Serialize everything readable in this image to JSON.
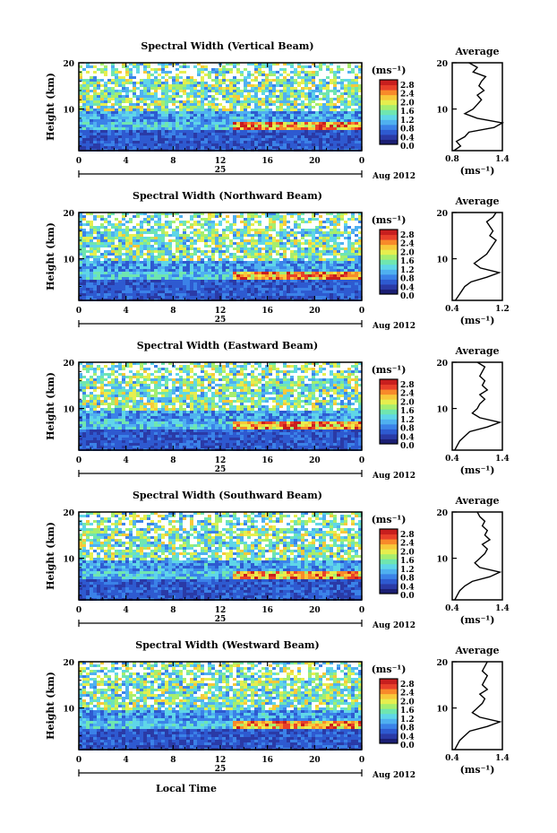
{
  "chart_data": [
    {
      "type": "heatmap",
      "title": "Spectral Width (Vertical Beam)",
      "xlabel": "",
      "ylabel": "Height (km)",
      "xlim": [
        0,
        24
      ],
      "ylim": [
        1,
        20
      ],
      "x_ticks": [
        "0",
        "4",
        "8",
        "12",
        "16",
        "20",
        "0"
      ],
      "y_ticks": [
        "20",
        "10"
      ],
      "date_day": "25",
      "date_month": "Aug 2012",
      "colorbar": {
        "unit": "(ms⁻¹)",
        "ticks": [
          "2.8",
          "2.4",
          "2.0",
          "1.6",
          "1.2",
          "0.8",
          "0.4",
          "0.0"
        ],
        "range": [
          0.0,
          2.8
        ]
      },
      "average": {
        "title": "Average",
        "xlabel": "(ms⁻¹)",
        "x_ticks": [
          "0.8",
          "1.4"
        ],
        "xlim": [
          0.8,
          1.4
        ],
        "y_ticks": [
          "20",
          "10"
        ],
        "profile": [
          [
            0.82,
            1
          ],
          [
            0.9,
            2
          ],
          [
            0.85,
            3
          ],
          [
            0.95,
            4
          ],
          [
            1.0,
            5
          ],
          [
            1.3,
            6
          ],
          [
            1.45,
            7
          ],
          [
            1.1,
            8
          ],
          [
            0.95,
            9
          ],
          [
            1.05,
            10
          ],
          [
            1.1,
            11
          ],
          [
            1.15,
            12
          ],
          [
            1.1,
            13
          ],
          [
            1.18,
            14
          ],
          [
            1.12,
            15
          ],
          [
            1.15,
            16
          ],
          [
            1.2,
            17
          ],
          [
            1.05,
            18
          ],
          [
            1.1,
            19
          ],
          [
            1.0,
            20
          ]
        ]
      }
    },
    {
      "type": "heatmap",
      "title": "Spectral Width (Northward Beam)",
      "xlabel": "",
      "ylabel": "Height (km)",
      "xlim": [
        0,
        24
      ],
      "ylim": [
        1,
        20
      ],
      "x_ticks": [
        "0",
        "4",
        "8",
        "12",
        "16",
        "20",
        "0"
      ],
      "y_ticks": [
        "20",
        "10"
      ],
      "date_day": "25",
      "date_month": "Aug 2012",
      "colorbar": {
        "unit": "(ms⁻¹)",
        "ticks": [
          "2.8",
          "2.4",
          "2.0",
          "1.6",
          "1.2",
          "0.8",
          "0.4",
          "0.0"
        ],
        "range": [
          0.0,
          2.8
        ]
      },
      "average": {
        "title": "Average",
        "xlabel": "(ms⁻¹)",
        "x_ticks": [
          "0.4",
          "1.2"
        ],
        "xlim": [
          0.4,
          1.2
        ],
        "y_ticks": [
          "20",
          "10"
        ],
        "profile": [
          [
            0.45,
            1
          ],
          [
            0.5,
            2
          ],
          [
            0.55,
            3
          ],
          [
            0.6,
            4
          ],
          [
            0.7,
            5
          ],
          [
            0.95,
            6
          ],
          [
            1.15,
            7
          ],
          [
            0.85,
            8
          ],
          [
            0.75,
            9
          ],
          [
            0.85,
            10
          ],
          [
            0.95,
            11
          ],
          [
            1.0,
            12
          ],
          [
            1.05,
            13
          ],
          [
            1.1,
            14
          ],
          [
            1.0,
            15
          ],
          [
            1.05,
            16
          ],
          [
            1.0,
            17
          ],
          [
            0.95,
            18
          ],
          [
            1.05,
            19
          ],
          [
            1.1,
            20
          ]
        ]
      }
    },
    {
      "type": "heatmap",
      "title": "Spectral Width (Eastward Beam)",
      "xlabel": "",
      "ylabel": "Height (km)",
      "xlim": [
        0,
        24
      ],
      "ylim": [
        1,
        20
      ],
      "x_ticks": [
        "0",
        "4",
        "8",
        "12",
        "16",
        "20",
        "0"
      ],
      "y_ticks": [
        "20",
        "10"
      ],
      "date_day": "25",
      "date_month": "Aug 2012",
      "colorbar": {
        "unit": "(ms⁻¹)",
        "ticks": [
          "2.8",
          "2.4",
          "2.0",
          "1.6",
          "1.2",
          "0.8",
          "0.4",
          "0.0"
        ],
        "range": [
          0.0,
          2.8
        ]
      },
      "average": {
        "title": "Average",
        "xlabel": "(ms⁻¹)",
        "x_ticks": [
          "0.4",
          "1.4"
        ],
        "xlim": [
          0.4,
          1.4
        ],
        "y_ticks": [
          "20",
          "10"
        ],
        "profile": [
          [
            0.45,
            1
          ],
          [
            0.5,
            2
          ],
          [
            0.55,
            3
          ],
          [
            0.65,
            4
          ],
          [
            0.75,
            5
          ],
          [
            1.1,
            6
          ],
          [
            1.35,
            7
          ],
          [
            0.95,
            8
          ],
          [
            0.8,
            9
          ],
          [
            0.9,
            10
          ],
          [
            0.95,
            11
          ],
          [
            1.05,
            12
          ],
          [
            0.95,
            13
          ],
          [
            1.1,
            14
          ],
          [
            1.0,
            15
          ],
          [
            1.05,
            16
          ],
          [
            0.95,
            17
          ],
          [
            1.0,
            18
          ],
          [
            1.05,
            19
          ],
          [
            0.9,
            20
          ]
        ]
      }
    },
    {
      "type": "heatmap",
      "title": "Spectral Width (Southward Beam)",
      "xlabel": "",
      "ylabel": "Height (km)",
      "xlim": [
        0,
        24
      ],
      "ylim": [
        1,
        20
      ],
      "x_ticks": [
        "0",
        "4",
        "8",
        "12",
        "16",
        "20",
        "0"
      ],
      "y_ticks": [
        "20",
        "10"
      ],
      "date_day": "25",
      "date_month": "Aug 2012",
      "colorbar": {
        "unit": "(ms⁻¹)",
        "ticks": [
          "2.8",
          "2.4",
          "2.0",
          "1.6",
          "1.2",
          "0.8",
          "0.4",
          "0.0"
        ],
        "range": [
          0.0,
          2.8
        ]
      },
      "average": {
        "title": "Average",
        "xlabel": "(ms⁻¹)",
        "x_ticks": [
          "0.4",
          "1.4"
        ],
        "xlim": [
          0.4,
          1.4
        ],
        "y_ticks": [
          "20",
          "10"
        ],
        "profile": [
          [
            0.45,
            1
          ],
          [
            0.5,
            2
          ],
          [
            0.55,
            3
          ],
          [
            0.65,
            4
          ],
          [
            0.8,
            5
          ],
          [
            1.15,
            6
          ],
          [
            1.35,
            7
          ],
          [
            0.95,
            8
          ],
          [
            0.85,
            9
          ],
          [
            0.95,
            10
          ],
          [
            1.05,
            11
          ],
          [
            1.1,
            12
          ],
          [
            1.0,
            13
          ],
          [
            1.15,
            14
          ],
          [
            1.05,
            15
          ],
          [
            1.1,
            16
          ],
          [
            1.0,
            17
          ],
          [
            1.05,
            18
          ],
          [
            0.95,
            19
          ],
          [
            0.9,
            20
          ]
        ]
      }
    },
    {
      "type": "heatmap",
      "title": "Spectral Width (Westward Beam)",
      "xlabel": "Local Time",
      "ylabel": "Height (km)",
      "xlim": [
        0,
        24
      ],
      "ylim": [
        1,
        20
      ],
      "x_ticks": [
        "0",
        "4",
        "8",
        "12",
        "16",
        "20",
        "0"
      ],
      "y_ticks": [
        "20",
        "10"
      ],
      "date_day": "25",
      "date_month": "Aug 2012",
      "colorbar": {
        "unit": "(ms⁻¹)",
        "ticks": [
          "2.8",
          "2.4",
          "2.0",
          "1.6",
          "1.2",
          "0.8",
          "0.4",
          "0.0"
        ],
        "range": [
          0.0,
          2.8
        ]
      },
      "average": {
        "title": "Average",
        "xlabel": "(ms⁻¹)",
        "x_ticks": [
          "0.4",
          "1.4"
        ],
        "xlim": [
          0.4,
          1.4
        ],
        "y_ticks": [
          "20",
          "10"
        ],
        "profile": [
          [
            0.45,
            1
          ],
          [
            0.5,
            2
          ],
          [
            0.55,
            3
          ],
          [
            0.65,
            4
          ],
          [
            0.75,
            5
          ],
          [
            1.1,
            6
          ],
          [
            1.35,
            7
          ],
          [
            0.95,
            8
          ],
          [
            0.8,
            9
          ],
          [
            0.9,
            10
          ],
          [
            1.0,
            11
          ],
          [
            1.05,
            12
          ],
          [
            0.95,
            13
          ],
          [
            1.1,
            14
          ],
          [
            1.0,
            15
          ],
          [
            1.05,
            16
          ],
          [
            1.1,
            17
          ],
          [
            1.0,
            18
          ],
          [
            1.05,
            19
          ],
          [
            1.1,
            20
          ]
        ]
      }
    }
  ],
  "colormap": [
    "#1b1f73",
    "#2a3aa6",
    "#2e5ad0",
    "#3b82e8",
    "#4fb0f0",
    "#5fd6e8",
    "#6fe6b0",
    "#a6ee6e",
    "#e6ee4e",
    "#f8c83a",
    "#f88a2a",
    "#e8402a",
    "#c81e1e"
  ]
}
